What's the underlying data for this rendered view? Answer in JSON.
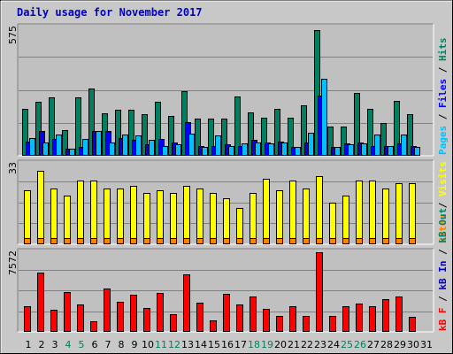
{
  "title": "Daily usage for November 2017",
  "colors": {
    "background": "#ffffff",
    "frame": "#c8c8c8",
    "plot_bg": "#c0c0c0",
    "grid": "#808080",
    "title": "#0000c0",
    "pages": "#00c0ff",
    "files": "#0000ff",
    "hits": "#008060",
    "visits": "#ffff00",
    "sites": "#ff8000",
    "kb_in": "#0000c0",
    "kb_out": "#008060",
    "kbf": "#ff0000",
    "day_normal": "#000000",
    "day_weekend": "#008060"
  },
  "chart_data": [
    {
      "type": "bar",
      "panel": "requests",
      "ymax_label": "575",
      "ylim": [
        0,
        575
      ],
      "grid": true,
      "right_legend": [
        {
          "text": "Pages",
          "color_key": "pages"
        },
        {
          "text": " / ",
          "color_key": "day_normal"
        },
        {
          "text": "Files",
          "color_key": "files"
        },
        {
          "text": " / ",
          "color_key": "day_normal"
        },
        {
          "text": "Hits",
          "color_key": "hits"
        }
      ],
      "series": [
        {
          "color_key": "hits",
          "values": [
            210,
            240,
            260,
            115,
            260,
            300,
            190,
            205,
            205,
            185,
            240,
            180,
            290,
            165,
            165,
            165,
            265,
            195,
            170,
            210,
            170,
            225,
            565,
            130,
            130,
            280,
            210,
            145,
            245,
            185
          ]
        },
        {
          "color_key": "files",
          "values": [
            65,
            110,
            75,
            30,
            40,
            110,
            110,
            80,
            70,
            50,
            75,
            60,
            150,
            45,
            45,
            50,
            45,
            70,
            60,
            65,
            40,
            60,
            270,
            40,
            55,
            60,
            45,
            45,
            55,
            45
          ]
        },
        {
          "color_key": "pages",
          "values": [
            80,
            60,
            95,
            30,
            75,
            110,
            60,
            95,
            90,
            70,
            45,
            50,
            100,
            40,
            90,
            45,
            55,
            60,
            55,
            60,
            40,
            105,
            345,
            40,
            50,
            55,
            95,
            45,
            95,
            40
          ]
        }
      ]
    },
    {
      "type": "bar",
      "panel": "visits",
      "ymax_label": "33",
      "ylim": [
        0,
        33
      ],
      "grid": true,
      "right_legend": [
        {
          "text": "Sites",
          "color_key": "sites"
        },
        {
          "text": " / ",
          "color_key": "day_normal"
        },
        {
          "text": "Visits",
          "color_key": "visits"
        }
      ],
      "series": [
        {
          "color_key": "visits",
          "values": [
            22,
            30,
            23,
            20,
            26,
            26,
            23,
            23,
            24,
            21,
            22,
            21,
            24,
            23,
            21,
            19,
            15,
            21,
            27,
            22,
            26,
            23,
            28,
            17,
            20,
            26,
            26,
            23,
            25,
            25
          ]
        },
        {
          "color_key": "sites",
          "values": [
            2,
            2,
            2,
            2,
            2,
            2,
            2,
            2,
            2,
            2,
            2,
            2,
            2,
            2,
            2,
            2,
            2,
            2,
            2,
            2,
            2,
            2,
            2,
            2,
            2,
            2,
            2,
            2,
            2,
            2
          ]
        }
      ]
    },
    {
      "type": "bar",
      "panel": "kbytes",
      "ymax_label": "7572",
      "ylim": [
        0,
        7572
      ],
      "grid": true,
      "right_legend": [
        {
          "text": "kB F",
          "color_key": "kbf"
        },
        {
          "text": " / ",
          "color_key": "day_normal"
        },
        {
          "text": "kB In",
          "color_key": "kb_in"
        },
        {
          "text": " / ",
          "color_key": "day_normal"
        },
        {
          "text": "kB Out",
          "color_key": "kb_out"
        }
      ],
      "series": [
        {
          "color_key": "kbf",
          "values": [
            2400,
            5600,
            2100,
            3800,
            2600,
            1000,
            4100,
            2900,
            3500,
            2300,
            3700,
            1700,
            5500,
            2800,
            1100,
            3600,
            2600,
            3400,
            2200,
            1500,
            2400,
            1500,
            7572,
            1500,
            2400,
            2700,
            2400,
            3100,
            3400,
            1400
          ]
        }
      ]
    }
  ],
  "x_axis": {
    "days": [
      "1",
      "2",
      "3",
      "4",
      "5",
      "6",
      "7",
      "8",
      "9",
      "10",
      "11",
      "12",
      "13",
      "14",
      "15",
      "16",
      "17",
      "18",
      "19",
      "20",
      "21",
      "22",
      "23",
      "24",
      "25",
      "26",
      "27",
      "28",
      "29",
      "30",
      "31"
    ],
    "weekend_indices": [
      3,
      4,
      10,
      11,
      17,
      18,
      24,
      25
    ]
  }
}
